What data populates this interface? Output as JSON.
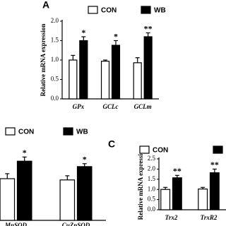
{
  "chart_data": [
    {
      "type": "bar",
      "panel_label": "A",
      "ylabel": "Relative mRNA expression",
      "categories": [
        "GPx",
        "GCLc",
        "GCLm"
      ],
      "series": [
        {
          "name": "CON",
          "color": "#ffffff",
          "values": [
            1.0,
            0.97,
            0.93
          ],
          "errors": [
            0.12,
            0.03,
            0.13
          ]
        },
        {
          "name": "WB",
          "color": "#000000",
          "values": [
            1.5,
            1.38,
            1.6
          ],
          "errors": [
            0.1,
            0.12,
            0.1
          ]
        }
      ],
      "annotations": [
        "*",
        "*",
        "**"
      ],
      "ylim": [
        0,
        2.0
      ],
      "yticks": [
        {
          "value": 0,
          "label": "0.0"
        },
        0.5,
        {
          "value": 1,
          "label": "1.0"
        },
        1.5,
        {
          "value": 2,
          "label": "2.0"
        }
      ]
    },
    {
      "type": "bar",
      "categories": [
        "MnSOD",
        "CuZnSOD"
      ],
      "series": [
        {
          "name": "CON",
          "color": "#ffffff",
          "values": [
            1.0,
            0.97
          ],
          "errors": [
            0.12,
            0.1
          ]
        },
        {
          "name": "WB",
          "color": "#000000",
          "values": [
            1.42,
            1.29
          ],
          "errors": [
            0.1,
            0.07
          ]
        }
      ],
      "annotations": [
        "*",
        "*"
      ],
      "ylim": [
        0,
        2.0
      ]
    },
    {
      "type": "bar",
      "panel_label": "C",
      "ylabel": "Relative mRNA expression",
      "categories": [
        "Trx2",
        "TrxR2"
      ],
      "series": [
        {
          "name": "CON",
          "color": "#ffffff",
          "values": [
            1.0,
            1.02
          ],
          "errors": [
            0.1,
            0.08
          ]
        },
        {
          "name": "WB",
          "color": "#000000",
          "values": [
            1.57,
            1.82
          ],
          "errors": [
            0.12,
            0.18
          ]
        }
      ],
      "annotations": [
        "**",
        "**"
      ],
      "ylim": [
        0,
        2.5
      ],
      "yticks": [
        {
          "value": 0,
          "label": "0.0"
        },
        0.5,
        {
          "value": 1,
          "label": "1.0"
        },
        1.5,
        {
          "value": 2,
          "label": "2.0"
        },
        2.5
      ]
    }
  ]
}
